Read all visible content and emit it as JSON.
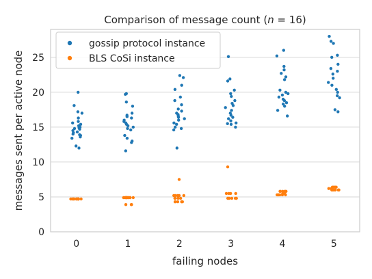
{
  "chart_data": {
    "type": "scatter",
    "title_main": "Comparison of message count (",
    "title_var": "n",
    "title_rest": " = 16)",
    "xlabel": "failing nodes",
    "ylabel": "messages sent per active node",
    "categories": [
      "0",
      "1",
      "2",
      "3",
      "4",
      "5"
    ],
    "yticks": [
      "0",
      "5",
      "10",
      "15",
      "20",
      "25"
    ],
    "ylim": [
      0,
      29
    ],
    "grid": "horizontal",
    "legend_position": "top-left",
    "series": [
      {
        "name": "gossip protocol instance",
        "color": "#1f77b4",
        "points": [
          [
            0,
            20.0
          ],
          [
            0,
            18.1
          ],
          [
            0,
            17.2
          ],
          [
            0,
            17.0
          ],
          [
            0,
            16.3
          ],
          [
            0,
            15.8
          ],
          [
            0,
            15.6
          ],
          [
            0,
            15.4
          ],
          [
            0,
            15.2
          ],
          [
            0,
            15.0
          ],
          [
            0,
            14.9
          ],
          [
            0,
            14.8
          ],
          [
            0,
            14.7
          ],
          [
            0,
            14.5
          ],
          [
            0,
            14.3
          ],
          [
            0,
            14.2
          ],
          [
            0,
            14.0
          ],
          [
            0,
            13.9
          ],
          [
            0,
            13.8
          ],
          [
            0,
            13.6
          ],
          [
            0,
            13.4
          ],
          [
            0,
            12.3
          ],
          [
            0,
            12.0
          ],
          [
            1,
            19.8
          ],
          [
            1,
            19.7
          ],
          [
            1,
            18.6
          ],
          [
            1,
            18.0
          ],
          [
            1,
            17.0
          ],
          [
            1,
            16.7
          ],
          [
            1,
            16.5
          ],
          [
            1,
            16.3
          ],
          [
            1,
            16.0
          ],
          [
            1,
            15.8
          ],
          [
            1,
            15.6
          ],
          [
            1,
            15.4
          ],
          [
            1,
            15.2
          ],
          [
            1,
            15.0
          ],
          [
            1,
            14.8
          ],
          [
            1,
            14.6
          ],
          [
            1,
            13.8
          ],
          [
            1,
            13.4
          ],
          [
            1,
            13.0
          ],
          [
            1,
            12.8
          ],
          [
            1,
            11.6
          ],
          [
            2,
            22.4
          ],
          [
            2,
            22.1
          ],
          [
            2,
            21.0
          ],
          [
            2,
            20.4
          ],
          [
            2,
            19.3
          ],
          [
            2,
            18.8
          ],
          [
            2,
            18.2
          ],
          [
            2,
            17.6
          ],
          [
            2,
            17.3
          ],
          [
            2,
            17.0
          ],
          [
            2,
            16.8
          ],
          [
            2,
            16.6
          ],
          [
            2,
            16.4
          ],
          [
            2,
            16.2
          ],
          [
            2,
            16.0
          ],
          [
            2,
            15.6
          ],
          [
            2,
            15.4
          ],
          [
            2,
            15.0
          ],
          [
            2,
            14.8
          ],
          [
            2,
            14.6
          ],
          [
            2,
            12.0
          ],
          [
            3,
            25.1
          ],
          [
            3,
            21.9
          ],
          [
            3,
            21.6
          ],
          [
            3,
            20.3
          ],
          [
            3,
            19.8
          ],
          [
            3,
            19.4
          ],
          [
            3,
            18.8
          ],
          [
            3,
            18.4
          ],
          [
            3,
            18.1
          ],
          [
            3,
            17.8
          ],
          [
            3,
            17.4
          ],
          [
            3,
            17.0
          ],
          [
            3,
            16.7
          ],
          [
            3,
            16.4
          ],
          [
            3,
            16.2
          ],
          [
            3,
            15.9
          ],
          [
            3,
            15.6
          ],
          [
            3,
            15.5
          ],
          [
            3,
            15.4
          ],
          [
            3,
            15.0
          ],
          [
            4,
            26.0
          ],
          [
            4,
            25.2
          ],
          [
            4,
            23.7
          ],
          [
            4,
            23.2
          ],
          [
            4,
            22.7
          ],
          [
            4,
            22.2
          ],
          [
            4,
            21.8
          ],
          [
            4,
            20.3
          ],
          [
            4,
            20.0
          ],
          [
            4,
            19.8
          ],
          [
            4,
            19.6
          ],
          [
            4,
            19.3
          ],
          [
            4,
            19.0
          ],
          [
            4,
            18.8
          ],
          [
            4,
            18.5
          ],
          [
            4,
            18.3
          ],
          [
            4,
            18.0
          ],
          [
            4,
            17.4
          ],
          [
            4,
            16.6
          ],
          [
            5,
            28.0
          ],
          [
            5,
            27.3
          ],
          [
            5,
            27.0
          ],
          [
            5,
            25.3
          ],
          [
            5,
            25.0
          ],
          [
            5,
            24.0
          ],
          [
            5,
            23.4
          ],
          [
            5,
            23.0
          ],
          [
            5,
            22.6
          ],
          [
            5,
            22.0
          ],
          [
            5,
            21.4
          ],
          [
            5,
            21.0
          ],
          [
            5,
            20.4
          ],
          [
            5,
            20.0
          ],
          [
            5,
            19.5
          ],
          [
            5,
            19.2
          ],
          [
            5,
            17.5
          ],
          [
            5,
            17.2
          ]
        ]
      },
      {
        "name": "BLS CoSi instance",
        "color": "#ff7f0e",
        "points": [
          [
            0,
            4.7
          ],
          [
            0,
            4.7
          ],
          [
            0,
            4.7
          ],
          [
            0,
            4.7
          ],
          [
            0,
            4.7
          ],
          [
            0,
            4.7
          ],
          [
            0,
            4.7
          ],
          [
            0,
            4.7
          ],
          [
            0,
            4.7
          ],
          [
            0,
            4.7
          ],
          [
            0,
            4.7
          ],
          [
            0,
            4.7
          ],
          [
            0,
            4.7
          ],
          [
            0,
            4.7
          ],
          [
            0,
            4.7
          ],
          [
            1,
            4.9
          ],
          [
            1,
            4.9
          ],
          [
            1,
            4.9
          ],
          [
            1,
            4.9
          ],
          [
            1,
            4.9
          ],
          [
            1,
            4.9
          ],
          [
            1,
            4.9
          ],
          [
            1,
            4.9
          ],
          [
            1,
            4.9
          ],
          [
            1,
            4.9
          ],
          [
            1,
            4.9
          ],
          [
            1,
            4.9
          ],
          [
            1,
            3.9
          ],
          [
            1,
            3.9
          ],
          [
            1,
            3.9
          ],
          [
            2,
            7.5
          ],
          [
            2,
            5.2
          ],
          [
            2,
            5.2
          ],
          [
            2,
            5.2
          ],
          [
            2,
            5.2
          ],
          [
            2,
            5.2
          ],
          [
            2,
            4.8
          ],
          [
            2,
            4.8
          ],
          [
            2,
            4.8
          ],
          [
            2,
            4.8
          ],
          [
            2,
            4.3
          ],
          [
            2,
            4.3
          ],
          [
            2,
            4.3
          ],
          [
            2,
            4.3
          ],
          [
            2,
            4.3
          ],
          [
            2,
            4.3
          ],
          [
            3,
            9.3
          ],
          [
            3,
            5.5
          ],
          [
            3,
            5.5
          ],
          [
            3,
            5.5
          ],
          [
            3,
            5.5
          ],
          [
            3,
            4.8
          ],
          [
            3,
            4.8
          ],
          [
            3,
            4.8
          ],
          [
            3,
            4.8
          ],
          [
            3,
            4.8
          ],
          [
            3,
            4.8
          ],
          [
            3,
            4.8
          ],
          [
            3,
            4.8
          ],
          [
            4,
            5.8
          ],
          [
            4,
            5.8
          ],
          [
            4,
            5.8
          ],
          [
            4,
            5.8
          ],
          [
            4,
            5.8
          ],
          [
            4,
            5.8
          ],
          [
            4,
            5.5
          ],
          [
            4,
            5.5
          ],
          [
            4,
            5.5
          ],
          [
            4,
            5.3
          ],
          [
            4,
            5.3
          ],
          [
            4,
            5.3
          ],
          [
            4,
            5.3
          ],
          [
            4,
            5.3
          ],
          [
            4,
            5.3
          ],
          [
            5,
            6.4
          ],
          [
            5,
            6.4
          ],
          [
            5,
            6.4
          ],
          [
            5,
            6.4
          ],
          [
            5,
            6.4
          ],
          [
            5,
            6.0
          ],
          [
            5,
            6.0
          ],
          [
            5,
            6.0
          ],
          [
            5,
            6.0
          ],
          [
            5,
            6.0
          ],
          [
            5,
            6.0
          ],
          [
            5,
            6.0
          ],
          [
            5,
            6.0
          ],
          [
            5,
            6.0
          ],
          [
            5,
            6.0
          ],
          [
            5,
            6.2
          ],
          [
            5,
            6.2
          ]
        ]
      }
    ]
  }
}
